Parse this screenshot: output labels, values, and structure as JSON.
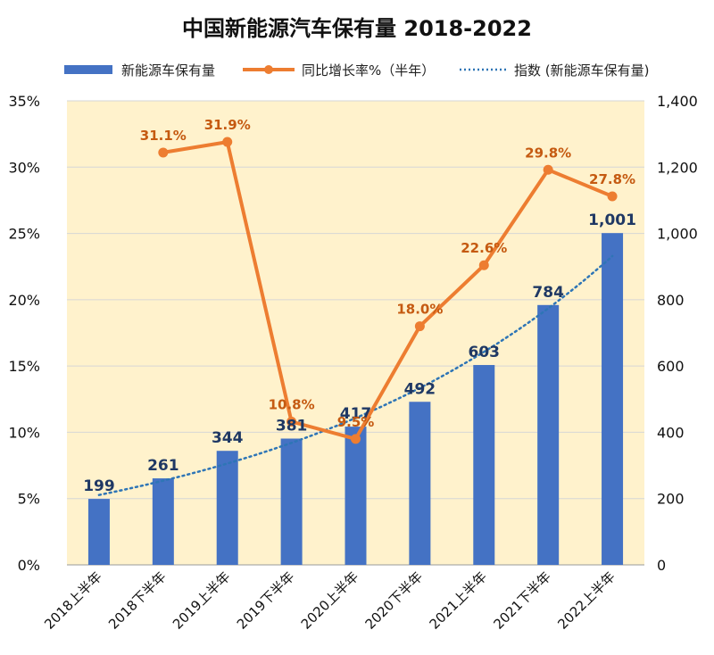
{
  "chart_data": {
    "type": "bar",
    "title": "中国新能源汽车保有量 2018-2022",
    "categories": [
      "2018上半年",
      "2018下半年",
      "2019上半年",
      "2019下半年",
      "2020上半年",
      "2020下半年",
      "2021上半年",
      "2021下半年",
      "2022上半年"
    ],
    "left_axis": {
      "range": [
        0,
        35
      ],
      "ticks": [
        0,
        5,
        10,
        15,
        20,
        25,
        30,
        35
      ],
      "tick_labels": [
        "0%",
        "5%",
        "10%",
        "15%",
        "20%",
        "25%",
        "30%",
        "35%"
      ]
    },
    "right_axis": {
      "range": [
        0,
        1400
      ],
      "ticks": [
        0,
        200,
        400,
        600,
        800,
        1000,
        1200,
        1400
      ],
      "tick_labels": [
        "0",
        "200",
        "400",
        "600",
        "800",
        "1,000",
        "1,200",
        "1,400"
      ]
    },
    "series": [
      {
        "name": "新能源车保有量",
        "type": "bar",
        "axis": "right",
        "color": "#4472c4",
        "values": [
          199,
          261,
          344,
          381,
          417,
          492,
          603,
          784,
          1001
        ],
        "labels": [
          "199",
          "261",
          "344",
          "381",
          "417",
          "492",
          "603",
          "784",
          "1,001"
        ]
      },
      {
        "name": "同比增长率%（半年）",
        "type": "line",
        "axis": "left",
        "color": "#ed7d31",
        "values": [
          null,
          31.1,
          31.9,
          10.8,
          9.5,
          18.0,
          22.6,
          29.8,
          27.8
        ],
        "labels": [
          "",
          "31.1%",
          "31.9%",
          "10.8%",
          "9.5%",
          "18.0%",
          "22.6%",
          "29.8%",
          "27.8%"
        ]
      },
      {
        "name": "指数 (新能源车保有量)",
        "type": "trendline",
        "axis": "right",
        "color": "#2e75b6",
        "style": "dotted"
      }
    ],
    "legend_position": "top",
    "plot_background": "#fff2cc",
    "grid": true
  }
}
